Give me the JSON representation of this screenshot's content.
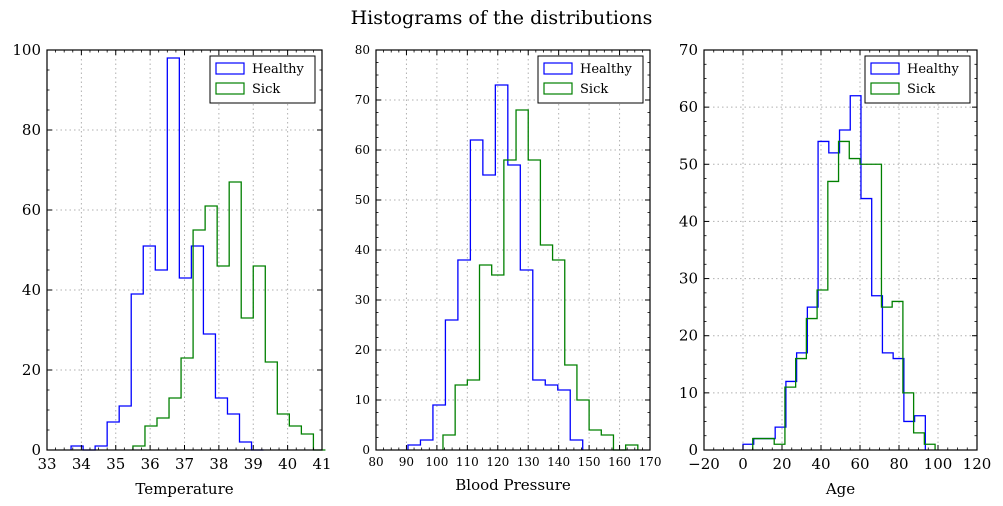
{
  "suptitle": "Histograms of the distributions",
  "colors": {
    "healthy": "#0000ff",
    "sick": "#008000",
    "grid": "#b0b0b0"
  },
  "chart_data": [
    {
      "type": "histogram",
      "xlabel": "Temperature",
      "ylabel": "",
      "xlim": [
        33,
        41
      ],
      "ylim": [
        0,
        100
      ],
      "xticks": [
        "33",
        "34",
        "35",
        "36",
        "37",
        "38",
        "39",
        "40",
        "41"
      ],
      "yticks": [
        "0",
        "20",
        "40",
        "60",
        "80",
        "100"
      ],
      "grid": true,
      "legend": "top-right",
      "series": [
        {
          "name": "Healthy",
          "color": "#0000ff",
          "edges": [
            33.7,
            34.05,
            34.4,
            34.75,
            35.1,
            35.45,
            35.8,
            36.15,
            36.5,
            36.85,
            37.2,
            37.55,
            37.9,
            38.25,
            38.6,
            38.95,
            39.3
          ],
          "counts": [
            1,
            0,
            1,
            7,
            11,
            39,
            51,
            45,
            98,
            43,
            51,
            29,
            13,
            9,
            2,
            0
          ]
        },
        {
          "name": "Sick",
          "color": "#008000",
          "edges": [
            35.5,
            35.85,
            36.2,
            36.55,
            36.9,
            37.25,
            37.6,
            37.95,
            38.3,
            38.65,
            39.0,
            39.35,
            39.7,
            40.05,
            40.4,
            40.75,
            41.1
          ],
          "counts": [
            1,
            6,
            8,
            13,
            23,
            55,
            61,
            46,
            67,
            33,
            46,
            22,
            9,
            6,
            4,
            0
          ]
        }
      ]
    },
    {
      "type": "histogram",
      "xlabel": "Blood Pressure",
      "ylabel": "",
      "xlim": [
        80,
        170
      ],
      "ylim": [
        0,
        80
      ],
      "xticks": [
        "80",
        "90",
        "100",
        "110",
        "120",
        "130",
        "140",
        "150",
        "160",
        "170"
      ],
      "yticks": [
        "0",
        "10",
        "20",
        "30",
        "40",
        "50",
        "60",
        "70",
        "80"
      ],
      "grid": true,
      "legend": "top-right",
      "series": [
        {
          "name": "Healthy",
          "color": "#0000ff",
          "edges": [
            90.5,
            94.6,
            98.7,
            102.8,
            106.9,
            111.0,
            115.1,
            119.2,
            123.3,
            127.4,
            131.5,
            135.6,
            139.7,
            143.8,
            147.9
          ],
          "counts": [
            1,
            2,
            9,
            26,
            38,
            62,
            55,
            73,
            57,
            36,
            14,
            13,
            12,
            2
          ]
        },
        {
          "name": "Sick",
          "color": "#008000",
          "edges": [
            102.0,
            106.0,
            110.0,
            114.0,
            118.0,
            122.0,
            126.0,
            130.0,
            134.0,
            138.0,
            142.0,
            146.0,
            150.0,
            154.0,
            158.0,
            162.0,
            166.0
          ],
          "counts": [
            3,
            13,
            14,
            37,
            35,
            58,
            68,
            58,
            41,
            38,
            17,
            10,
            4,
            3,
            0,
            1
          ]
        }
      ]
    },
    {
      "type": "histogram",
      "xlabel": "Age",
      "ylabel": "",
      "xlim": [
        -20,
        120
      ],
      "ylim": [
        0,
        70
      ],
      "xticks": [
        "−20",
        "0",
        "20",
        "40",
        "60",
        "80",
        "100",
        "120"
      ],
      "yticks": [
        "0",
        "10",
        "20",
        "30",
        "40",
        "50",
        "60",
        "70"
      ],
      "grid": true,
      "legend": "top-right",
      "series": [
        {
          "name": "Healthy",
          "color": "#0000ff",
          "edges": [
            0,
            5.5,
            11,
            16.5,
            22,
            27.5,
            33,
            38.5,
            44,
            49.5,
            55,
            60.5,
            66,
            71.5,
            77,
            82.5,
            88,
            93.5
          ],
          "counts": [
            1,
            2,
            2,
            4,
            12,
            17,
            25,
            54,
            52,
            56,
            62,
            44,
            27,
            17,
            16,
            5,
            6
          ]
        },
        {
          "name": "Sick",
          "color": "#008000",
          "edges": [
            5,
            10.5,
            16,
            21.5,
            27,
            32.5,
            38,
            43.5,
            49,
            54.5,
            60,
            65.5,
            71,
            76.5,
            82,
            87.5,
            93,
            98.5
          ],
          "counts": [
            2,
            2,
            1,
            11,
            16,
            23,
            28,
            47,
            54,
            51,
            50,
            50,
            25,
            26,
            10,
            3,
            1
          ]
        }
      ]
    }
  ]
}
